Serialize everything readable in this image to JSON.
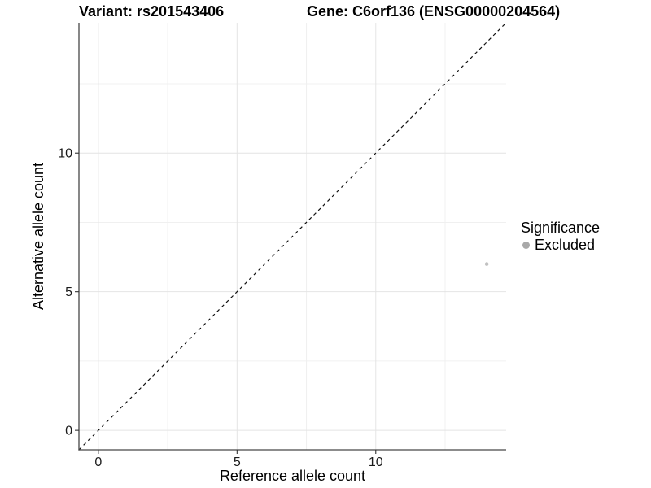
{
  "titles": {
    "variant": "Variant: rs201543406",
    "gene": "Gene: C6orf136 (ENSG00000204564)"
  },
  "chart_data": {
    "type": "scatter",
    "xlabel": "Reference allele count",
    "ylabel": "Alternative allele count",
    "xlim": [
      -0.7,
      14.7
    ],
    "ylim": [
      -0.7,
      14.7
    ],
    "x_ticks": [
      0,
      5,
      10
    ],
    "y_ticks": [
      0,
      5,
      10
    ],
    "minor_gridlines": [
      2.5,
      7.5,
      12.5
    ],
    "grid": true,
    "series": [
      {
        "name": "Excluded",
        "points": [
          {
            "x": 14,
            "y": 6
          }
        ],
        "color": "#c1c1c1"
      }
    ],
    "identity_line": {
      "type": "abline",
      "slope": 1,
      "intercept": 0,
      "style": "dashed",
      "color": "#111111"
    },
    "legend": {
      "title": "Significance",
      "position": "right",
      "items": [
        {
          "label": "Excluded",
          "color": "#a9a9a9"
        }
      ]
    }
  },
  "style_colors": {
    "axis_line": "#474747",
    "tick_mark": "#333333",
    "tick_label": "#1a1a1a",
    "grid_major": "#e4e4e4",
    "grid_minor": "#f0f0f0",
    "background": "#ffffff"
  }
}
